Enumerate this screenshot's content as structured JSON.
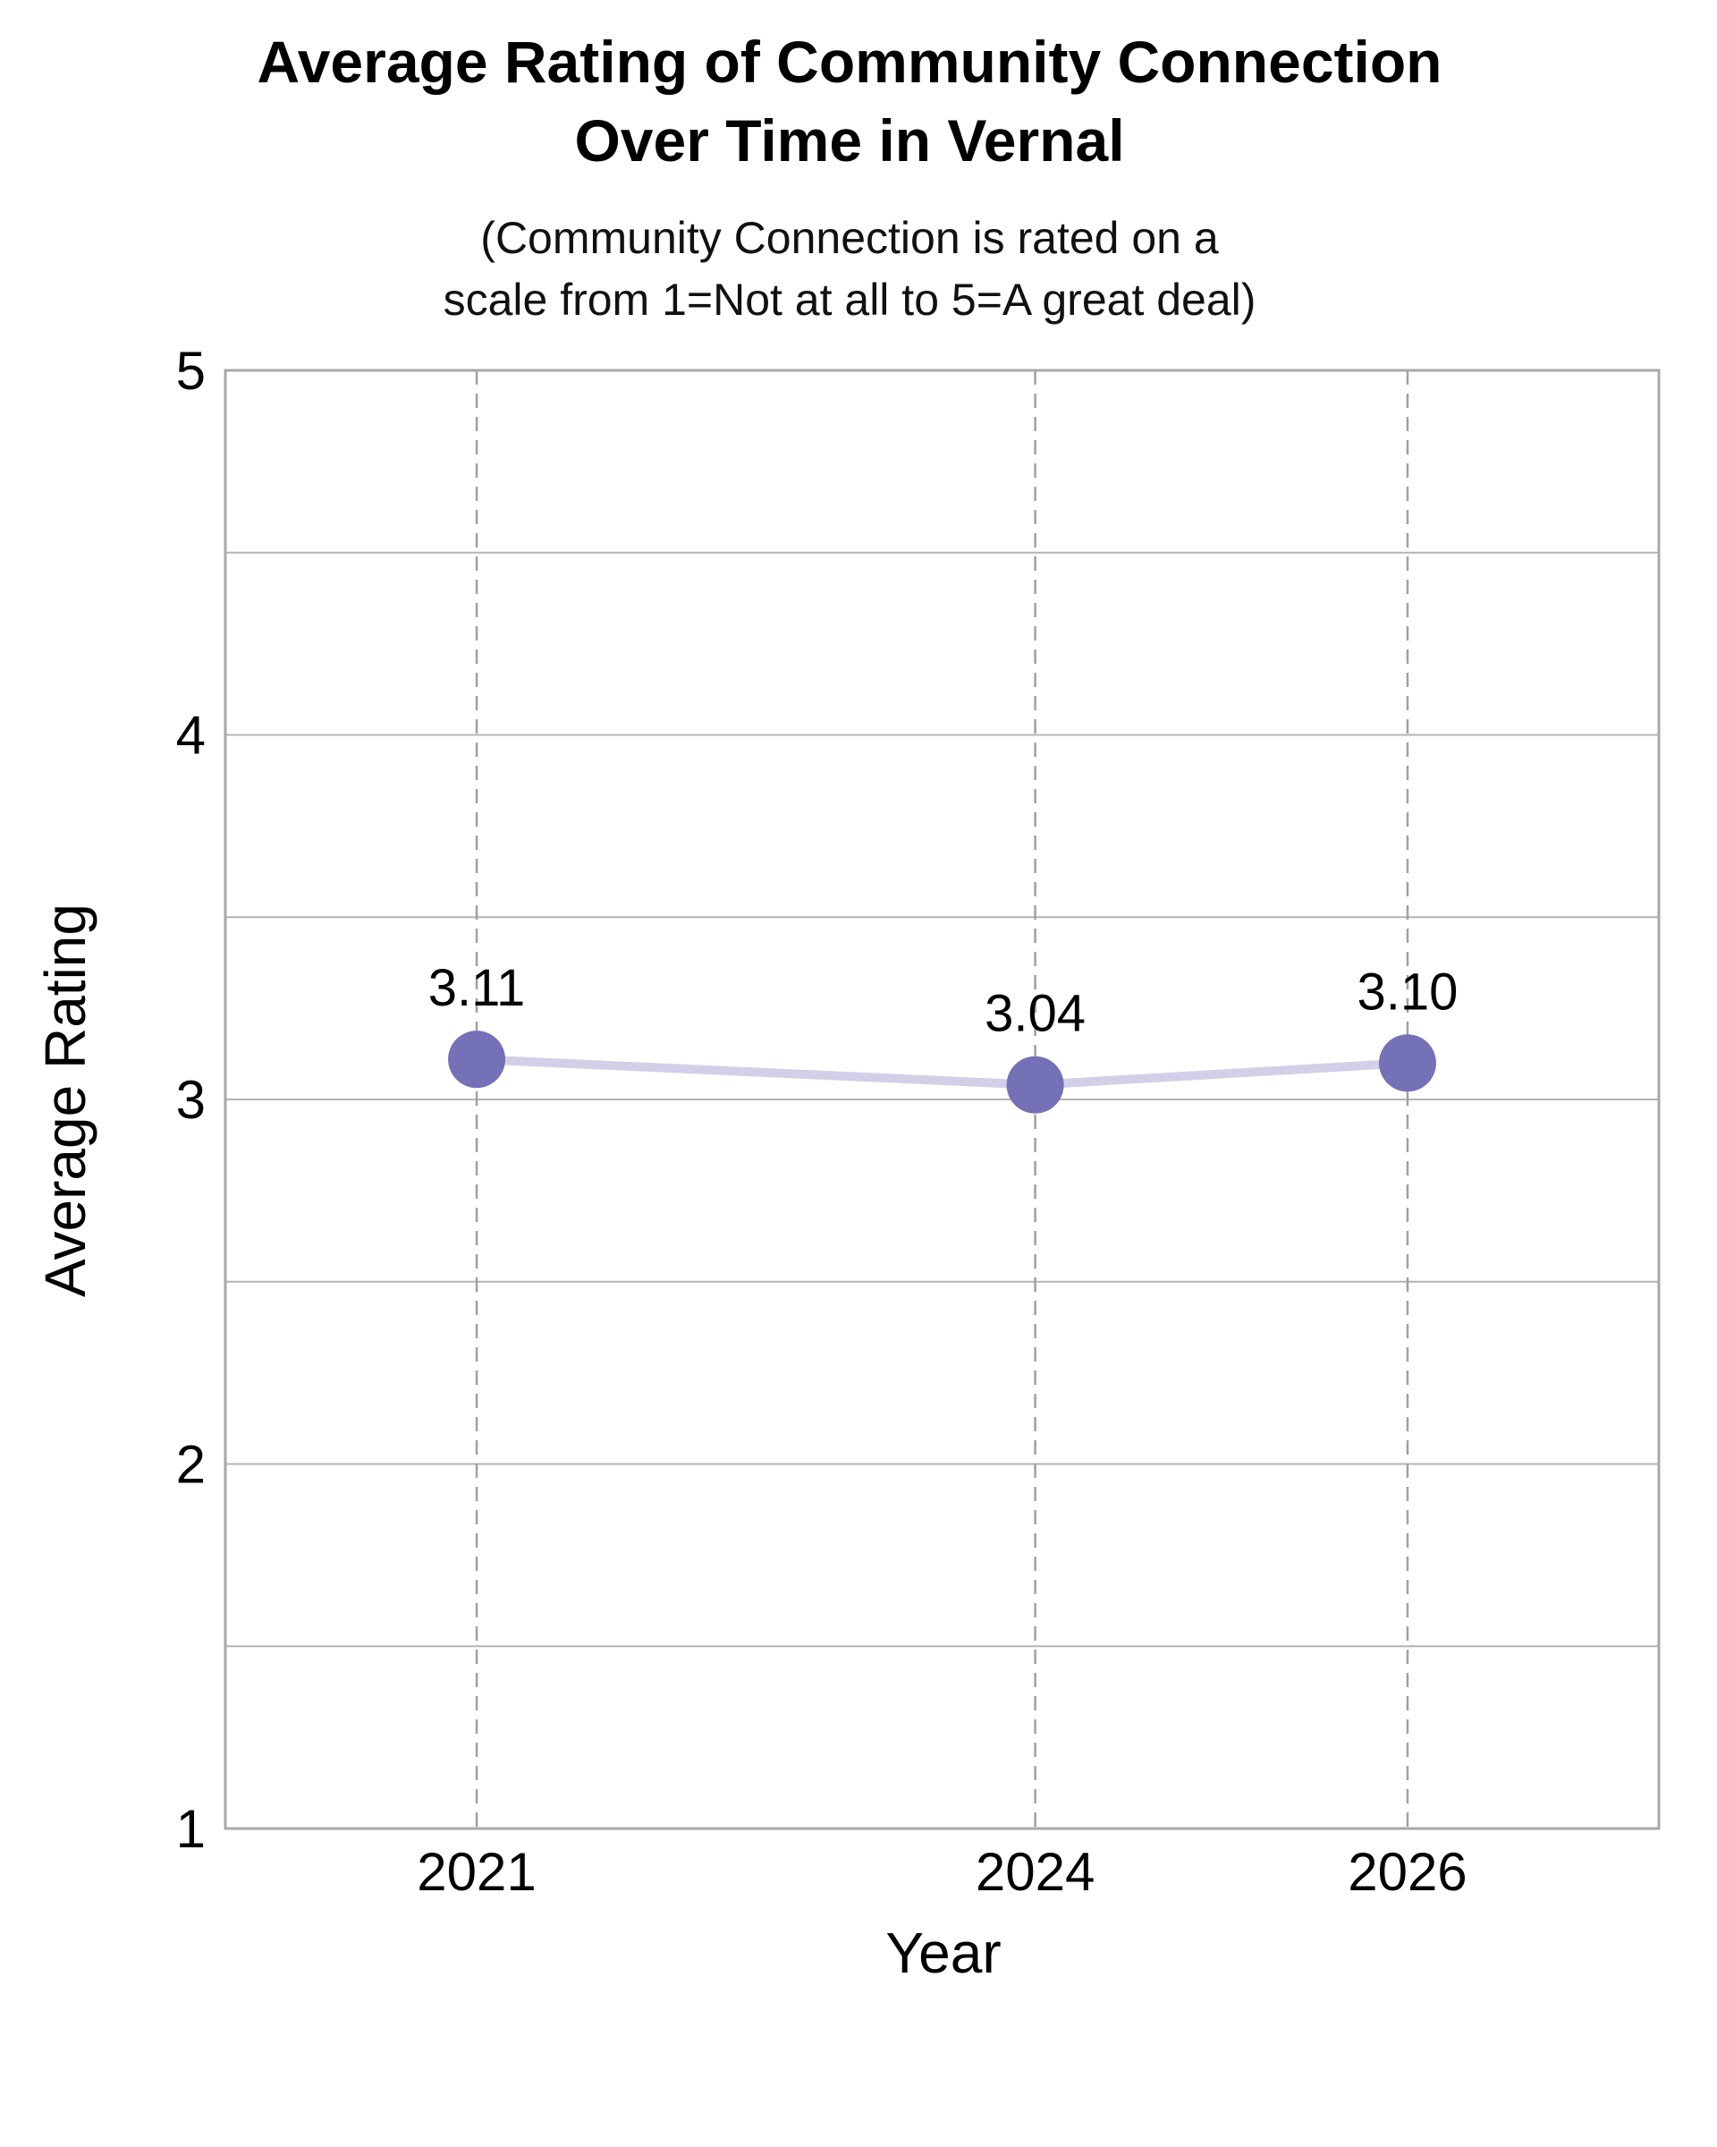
{
  "chart_data": {
    "type": "line",
    "title_lines": [
      "Average Rating of Community Connection",
      "Over Time in Vernal"
    ],
    "subtitle_lines": [
      "(Community Connection is rated on a",
      "scale from 1=Not at all to 5=A great deal)"
    ],
    "xlabel": "Year",
    "ylabel": "Average Rating",
    "x": [
      2021,
      2024,
      2026
    ],
    "x_tick_labels": [
      "2021",
      "2024",
      "2026"
    ],
    "xlim": [
      2019.65,
      2027.35
    ],
    "ylim": [
      1,
      5
    ],
    "y_ticks": [
      1,
      2,
      3,
      4,
      5
    ],
    "y_minor_ticks": [
      1.5,
      2.5,
      3.5,
      4.5
    ],
    "grid": true,
    "series": [
      {
        "values": [
          3.11,
          3.04,
          3.1
        ],
        "data_labels": [
          "3.11",
          "3.04",
          "3.10"
        ],
        "marker_color": "#7571b7",
        "line_color": "#d2d0e8"
      }
    ],
    "colors": {
      "frame": "#a8a8a8",
      "gridline": "#b4b4b4",
      "vertical_gridline": "#a0a0a0"
    }
  }
}
